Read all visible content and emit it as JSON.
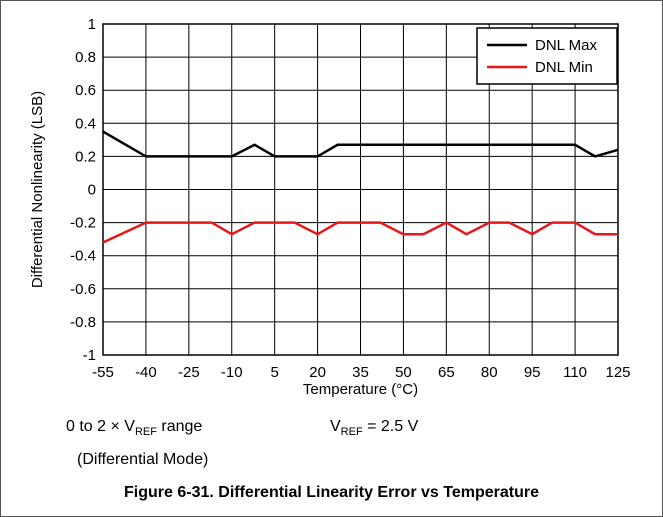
{
  "chart_data": {
    "type": "line",
    "title": "",
    "xlabel": "Temperature (°C)",
    "ylabel": "Differential Nonlinearity (LSB)",
    "xlim": [
      -55,
      125
    ],
    "ylim": [
      -1,
      1
    ],
    "x_ticks": [
      "-55",
      "-40",
      "-25",
      "-10",
      "5",
      "20",
      "35",
      "50",
      "65",
      "80",
      "95",
      "110",
      "125"
    ],
    "y_ticks": [
      "1",
      "0.8",
      "0.6",
      "0.4",
      "0.2",
      "0",
      "-0.2",
      "-0.4",
      "-0.6",
      "-0.8",
      "-1"
    ],
    "grid": true,
    "legend_position": "top-right",
    "x": [
      -55,
      -40,
      -32,
      -25,
      -17,
      -10,
      -2,
      5,
      12,
      20,
      27,
      35,
      42,
      50,
      57,
      65,
      72,
      80,
      87,
      95,
      102,
      110,
      117,
      125
    ],
    "series": [
      {
        "name": "DNL Max",
        "color": "#000000",
        "values": [
          0.35,
          0.2,
          0.2,
          0.2,
          0.2,
          0.2,
          0.27,
          0.2,
          0.2,
          0.2,
          0.27,
          0.27,
          0.27,
          0.27,
          0.27,
          0.27,
          0.27,
          0.27,
          0.27,
          0.27,
          0.27,
          0.27,
          0.2,
          0.24
        ]
      },
      {
        "name": "DNL Min",
        "color": "#e8171b",
        "values": [
          -0.32,
          -0.2,
          -0.2,
          -0.2,
          -0.2,
          -0.27,
          -0.2,
          -0.2,
          -0.2,
          -0.27,
          -0.2,
          -0.2,
          -0.2,
          -0.27,
          -0.27,
          -0.2,
          -0.27,
          -0.2,
          -0.2,
          -0.27,
          -0.2,
          -0.2,
          -0.27,
          -0.27
        ]
      }
    ]
  },
  "notes": {
    "range_prefix": "0 to 2 × V",
    "range_sub": "REF",
    "range_suffix": " range",
    "mode": "(Differential Mode)",
    "vref_prefix": "V",
    "vref_sub": "REF",
    "vref_suffix": " = 2.5 V"
  },
  "caption": "Figure 6-31. Differential Linearity Error vs Temperature"
}
